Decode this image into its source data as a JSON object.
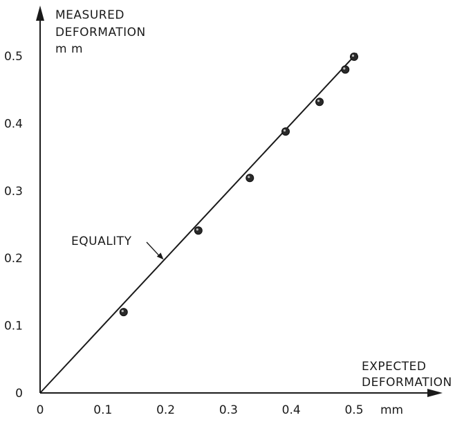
{
  "chart_data": {
    "type": "scatter",
    "ylabel": [
      "MEASURED",
      "DEFORMATION",
      "m m"
    ],
    "xlabel": [
      "EXPECTED",
      "DEFORMATION"
    ],
    "xunit": "mm",
    "xlim": [
      0,
      0.5
    ],
    "ylim": [
      0,
      0.5
    ],
    "xticks": [
      "0",
      "0.1",
      "0.2",
      "0.3",
      "0.4",
      "0.5"
    ],
    "yticks": [
      "0",
      "0.1",
      "0.2",
      "0.3",
      "0.4",
      "0.5"
    ],
    "grid": false,
    "reference_line": {
      "label": "EQUALITY",
      "from": [
        0,
        0
      ],
      "to": [
        0.5,
        0.5
      ]
    },
    "points": [
      {
        "x": 0.133,
        "y": 0.12
      },
      {
        "x": 0.252,
        "y": 0.241
      },
      {
        "x": 0.334,
        "y": 0.319
      },
      {
        "x": 0.391,
        "y": 0.388
      },
      {
        "x": 0.445,
        "y": 0.432
      },
      {
        "x": 0.486,
        "y": 0.48
      },
      {
        "x": 0.5,
        "y": 0.499
      }
    ]
  }
}
